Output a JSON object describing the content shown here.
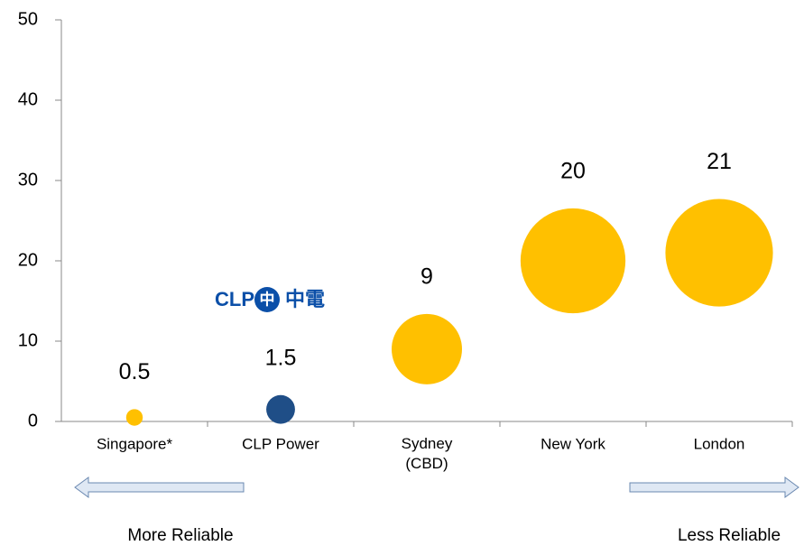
{
  "chart_data": {
    "type": "bubble",
    "categories": [
      "Singapore*",
      "CLP Power",
      "Sydney\n(CBD)",
      "New York",
      "London"
    ],
    "values": [
      0.5,
      1.5,
      9,
      20,
      21
    ],
    "colors": [
      "#ffc000",
      "#1f4e87",
      "#ffc000",
      "#ffc000",
      "#ffc000"
    ],
    "ylim": [
      0,
      50
    ],
    "yticks": [
      0,
      10,
      20,
      30,
      40,
      50
    ],
    "logo": {
      "text": "CLP",
      "icon": "中",
      "chinese": "中電"
    },
    "annotations": {
      "left": "More Reliable",
      "right": "Less Reliable"
    }
  }
}
